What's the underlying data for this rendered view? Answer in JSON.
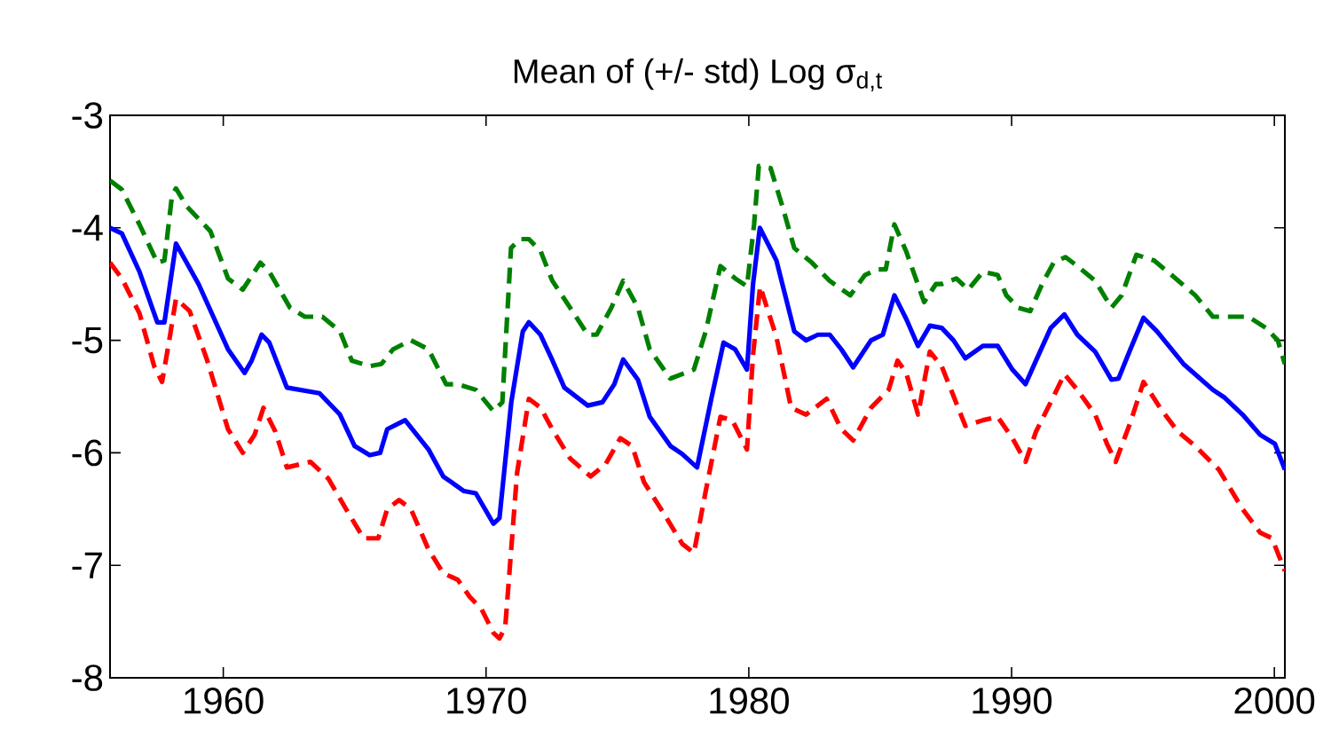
{
  "chart_data": {
    "type": "line",
    "title": "Mean of (+/- std) Log σ$_{d,t}$",
    "xlim": [
      1955.69,
      2000.4
    ],
    "ylim": [
      -8,
      -3
    ],
    "xticks": [
      1960,
      1970,
      1980,
      1990,
      2000
    ],
    "yticks": [
      -8,
      -7,
      -6,
      -5,
      -4,
      -3
    ],
    "series": [
      {
        "color": "#008000",
        "line_style": "dashed",
        "x": [
          1955.69,
          1956.14,
          1956.81,
          1957.49,
          1957.76,
          1958.05,
          1958.2,
          1958.61,
          1959.51,
          1960.18,
          1960.74,
          1961.41,
          1961.75,
          1962.54,
          1963.1,
          1963.77,
          1964.44,
          1964.89,
          1965.57,
          1966.02,
          1966.46,
          1967.14,
          1967.81,
          1968.48,
          1968.93,
          1969.61,
          1970.28,
          1970.62,
          1970.95,
          1971.29,
          1971.63,
          1972.08,
          1972.52,
          1973.2,
          1973.87,
          1974.21,
          1974.77,
          1975.22,
          1975.78,
          1976.23,
          1977.01,
          1977.91,
          1978.36,
          1978.92,
          1979.48,
          1979.93,
          1980.2,
          1980.38,
          1980.83,
          1981.28,
          1981.73,
          1982.4,
          1983.07,
          1983.86,
          1984.42,
          1984.87,
          1985.21,
          1985.54,
          1985.99,
          1986.67,
          1987.12,
          1987.34,
          1987.9,
          1988.35,
          1988.91,
          1989.47,
          1989.8,
          1990.25,
          1990.71,
          1991.16,
          1991.6,
          1992.05,
          1992.5,
          1993.18,
          1993.8,
          1994.19,
          1994.75,
          1995.42,
          1996.09,
          1996.99,
          1997.66,
          1998.34,
          1999.01,
          1999.68,
          2000.13,
          2000.4
        ],
        "values": [
          -3.58,
          -3.66,
          -3.97,
          -4.31,
          -4.29,
          -3.71,
          -3.65,
          -3.81,
          -4.03,
          -4.45,
          -4.55,
          -4.31,
          -4.39,
          -4.71,
          -4.79,
          -4.79,
          -4.92,
          -5.18,
          -5.23,
          -5.21,
          -5.08,
          -5.0,
          -5.08,
          -5.39,
          -5.39,
          -5.44,
          -5.63,
          -5.55,
          -4.18,
          -4.1,
          -4.1,
          -4.21,
          -4.47,
          -4.71,
          -4.95,
          -4.95,
          -4.71,
          -4.47,
          -4.71,
          -5.08,
          -5.34,
          -5.26,
          -4.92,
          -4.34,
          -4.45,
          -4.52,
          -3.97,
          -3.45,
          -3.47,
          -3.81,
          -4.18,
          -4.31,
          -4.47,
          -4.6,
          -4.42,
          -4.37,
          -4.37,
          -3.97,
          -4.21,
          -4.66,
          -4.5,
          -4.5,
          -4.45,
          -4.55,
          -4.39,
          -4.42,
          -4.6,
          -4.71,
          -4.74,
          -4.5,
          -4.31,
          -4.26,
          -4.34,
          -4.47,
          -4.71,
          -4.6,
          -4.24,
          -4.29,
          -4.42,
          -4.6,
          -4.79,
          -4.79,
          -4.79,
          -4.89,
          -5.0,
          -5.21
        ]
      },
      {
        "color": "#0000ff",
        "line_style": "solid",
        "x": [
          1955.69,
          1956.14,
          1956.81,
          1957.49,
          1957.76,
          1958.2,
          1959.06,
          1960.18,
          1960.81,
          1961.08,
          1961.46,
          1961.75,
          1962.42,
          1963.66,
          1964.44,
          1965.0,
          1965.57,
          1965.97,
          1966.24,
          1966.92,
          1967.81,
          1968.37,
          1969.16,
          1969.61,
          1970.28,
          1970.51,
          1970.96,
          1971.4,
          1971.63,
          1972.07,
          1972.53,
          1972.98,
          1973.87,
          1974.43,
          1974.88,
          1975.22,
          1975.78,
          1976.23,
          1977.02,
          1977.46,
          1978.03,
          1978.59,
          1979.04,
          1979.48,
          1979.93,
          1980.16,
          1980.42,
          1981.05,
          1981.73,
          1982.18,
          1982.63,
          1983.08,
          1983.52,
          1983.97,
          1984.65,
          1985.1,
          1985.54,
          1985.99,
          1986.44,
          1986.89,
          1987.34,
          1987.79,
          1988.24,
          1988.91,
          1989.47,
          1990.03,
          1990.53,
          1990.93,
          1991.49,
          1992.01,
          1992.5,
          1993.18,
          1993.8,
          1994.07,
          1994.52,
          1995.02,
          1995.53,
          1996.54,
          1997.66,
          1998.11,
          1998.79,
          1999.46,
          2000.02,
          2000.4
        ],
        "values": [
          -4.0,
          -4.05,
          -4.39,
          -4.84,
          -4.84,
          -4.14,
          -4.5,
          -5.08,
          -5.29,
          -5.18,
          -4.95,
          -5.02,
          -5.42,
          -5.47,
          -5.66,
          -5.94,
          -6.02,
          -6.0,
          -5.79,
          -5.71,
          -5.97,
          -6.21,
          -6.34,
          -6.36,
          -6.63,
          -6.58,
          -5.55,
          -4.92,
          -4.84,
          -4.95,
          -5.18,
          -5.42,
          -5.58,
          -5.55,
          -5.39,
          -5.17,
          -5.35,
          -5.68,
          -5.94,
          -6.01,
          -6.13,
          -5.5,
          -5.02,
          -5.08,
          -5.26,
          -4.5,
          -4.0,
          -4.29,
          -4.92,
          -5.0,
          -4.95,
          -4.95,
          -5.08,
          -5.24,
          -5.0,
          -4.95,
          -4.6,
          -4.81,
          -5.05,
          -4.87,
          -4.89,
          -5.0,
          -5.16,
          -5.05,
          -5.05,
          -5.26,
          -5.39,
          -5.18,
          -4.89,
          -4.77,
          -4.95,
          -5.1,
          -5.35,
          -5.34,
          -5.08,
          -4.8,
          -4.92,
          -5.21,
          -5.44,
          -5.51,
          -5.66,
          -5.84,
          -5.92,
          -6.15
        ]
      },
      {
        "color": "#ff0000",
        "line_style": "dashed",
        "x": [
          1955.69,
          1956.14,
          1956.81,
          1957.37,
          1957.67,
          1957.93,
          1958.2,
          1958.72,
          1959.39,
          1960.18,
          1960.74,
          1961.19,
          1961.53,
          1961.98,
          1962.42,
          1963.32,
          1964.0,
          1964.67,
          1965.34,
          1965.9,
          1966.24,
          1966.69,
          1967.14,
          1967.81,
          1968.37,
          1968.93,
          1969.38,
          1969.83,
          1970.28,
          1970.51,
          1970.73,
          1971.18,
          1971.63,
          1972.08,
          1972.52,
          1973.2,
          1973.98,
          1974.55,
          1975.11,
          1975.56,
          1976.01,
          1976.79,
          1977.47,
          1977.91,
          1978.36,
          1978.92,
          1979.37,
          1979.93,
          1980.16,
          1980.43,
          1981.05,
          1981.61,
          1982.18,
          1982.96,
          1983.52,
          1983.97,
          1984.65,
          1985.32,
          1985.66,
          1985.99,
          1986.44,
          1986.89,
          1987.34,
          1988.24,
          1988.91,
          1989.47,
          1990.03,
          1990.53,
          1990.93,
          1991.49,
          1992.01,
          1992.5,
          1993.18,
          1993.63,
          1993.96,
          1994.52,
          1995.02,
          1995.65,
          1996.32,
          1996.99,
          1997.89,
          1998.79,
          1999.46,
          1999.91,
          2000.4
        ],
        "values": [
          -4.31,
          -4.45,
          -4.76,
          -5.23,
          -5.37,
          -5.02,
          -4.63,
          -4.74,
          -5.18,
          -5.79,
          -6.0,
          -5.84,
          -5.6,
          -5.81,
          -6.13,
          -6.08,
          -6.23,
          -6.5,
          -6.76,
          -6.76,
          -6.5,
          -6.42,
          -6.5,
          -6.86,
          -7.07,
          -7.13,
          -7.28,
          -7.39,
          -7.6,
          -7.65,
          -7.55,
          -6.18,
          -5.52,
          -5.6,
          -5.79,
          -6.05,
          -6.21,
          -6.1,
          -5.87,
          -5.94,
          -6.26,
          -6.55,
          -6.81,
          -6.89,
          -6.34,
          -5.68,
          -5.71,
          -5.97,
          -5.13,
          -4.52,
          -4.97,
          -5.6,
          -5.66,
          -5.52,
          -5.79,
          -5.89,
          -5.6,
          -5.44,
          -5.18,
          -5.29,
          -5.66,
          -5.1,
          -5.23,
          -5.76,
          -5.71,
          -5.68,
          -5.87,
          -6.08,
          -5.81,
          -5.55,
          -5.3,
          -5.44,
          -5.66,
          -5.92,
          -6.08,
          -5.73,
          -5.37,
          -5.6,
          -5.81,
          -5.94,
          -6.15,
          -6.5,
          -6.71,
          -6.76,
          -7.05
        ]
      }
    ]
  }
}
